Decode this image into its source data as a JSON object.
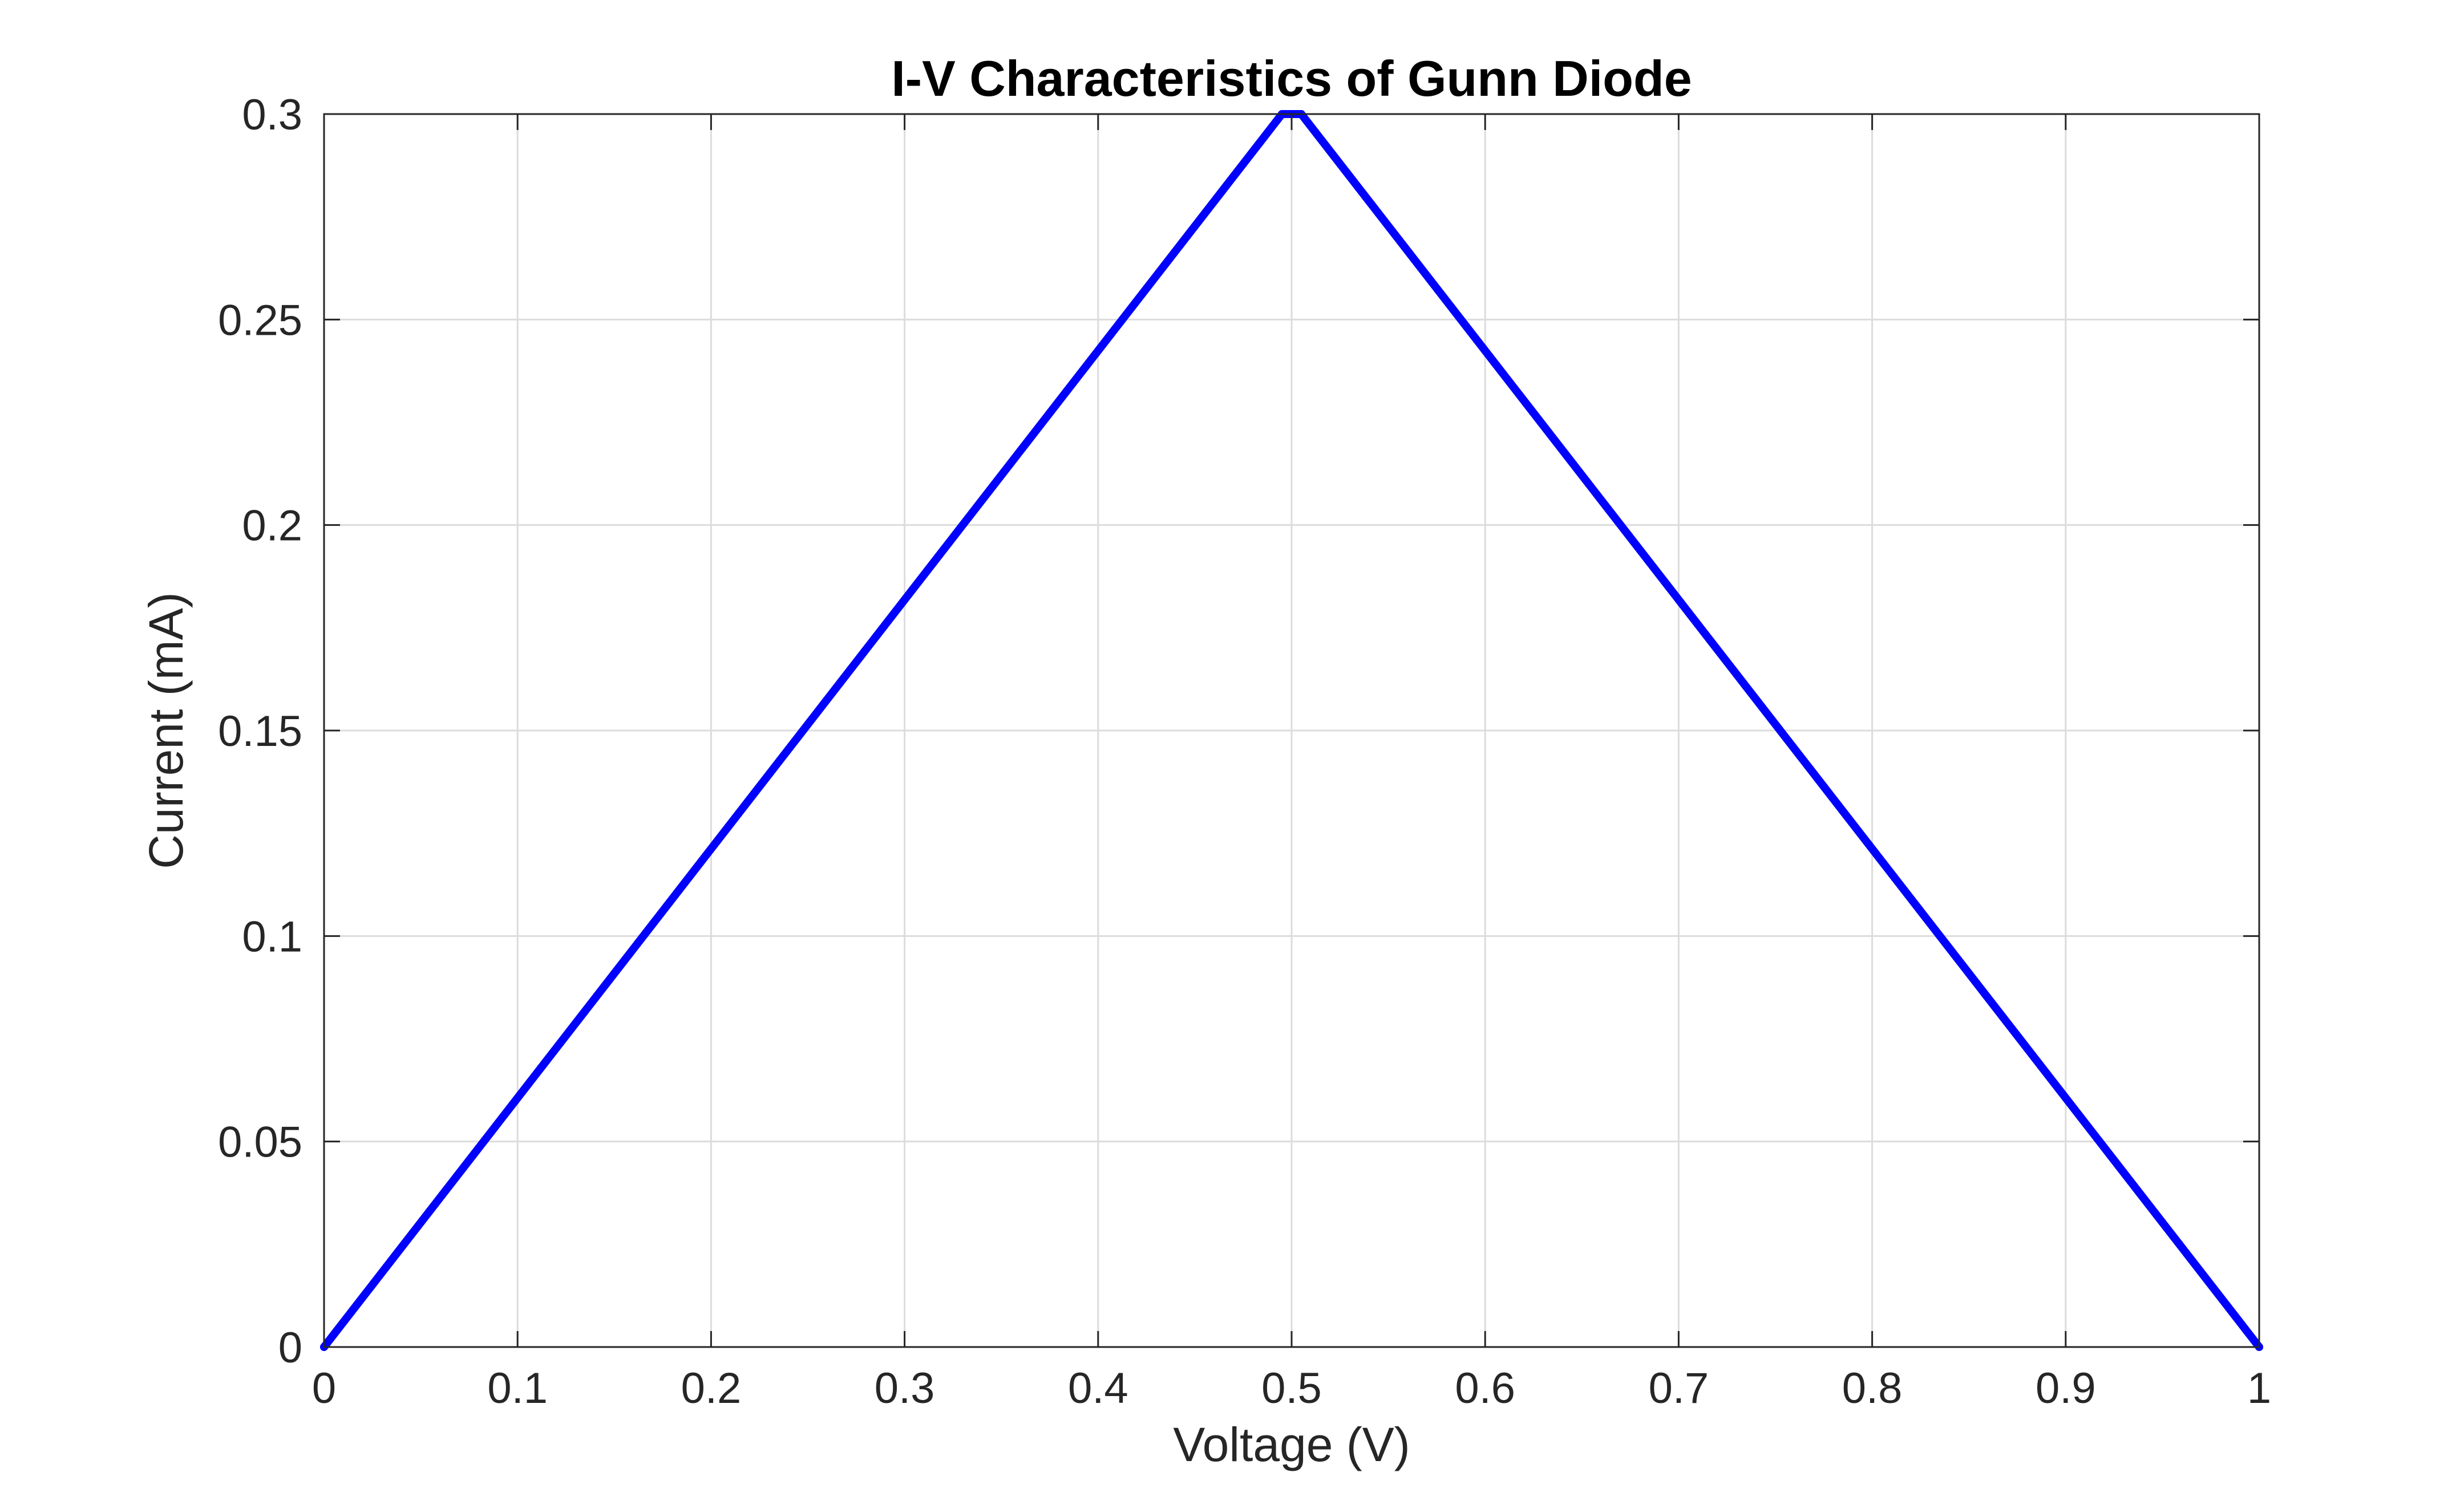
{
  "chart_data": {
    "type": "line",
    "title": "I-V Characteristics of Gunn Diode",
    "xlabel": "Voltage (V)",
    "ylabel": "Current (mA)",
    "xlim": [
      0,
      1
    ],
    "ylim": [
      0,
      0.3
    ],
    "x_ticks": [
      0,
      0.1,
      0.2,
      0.3,
      0.4,
      0.5,
      0.6,
      0.7,
      0.8,
      0.9,
      1
    ],
    "x_tick_labels": [
      "0",
      "0.1",
      "0.2",
      "0.3",
      "0.4",
      "0.5",
      "0.6",
      "0.7",
      "0.8",
      "0.9",
      "1"
    ],
    "y_ticks": [
      0,
      0.05,
      0.1,
      0.15,
      0.2,
      0.25,
      0.3
    ],
    "y_tick_labels": [
      "0",
      "0.05",
      "0.1",
      "0.15",
      "0.2",
      "0.25",
      "0.3"
    ],
    "grid": true,
    "series": [
      {
        "color": "#0000ff",
        "x": [
          0,
          0.495,
          0.505,
          1
        ],
        "y": [
          0,
          0.3,
          0.3,
          0
        ]
      }
    ]
  }
}
